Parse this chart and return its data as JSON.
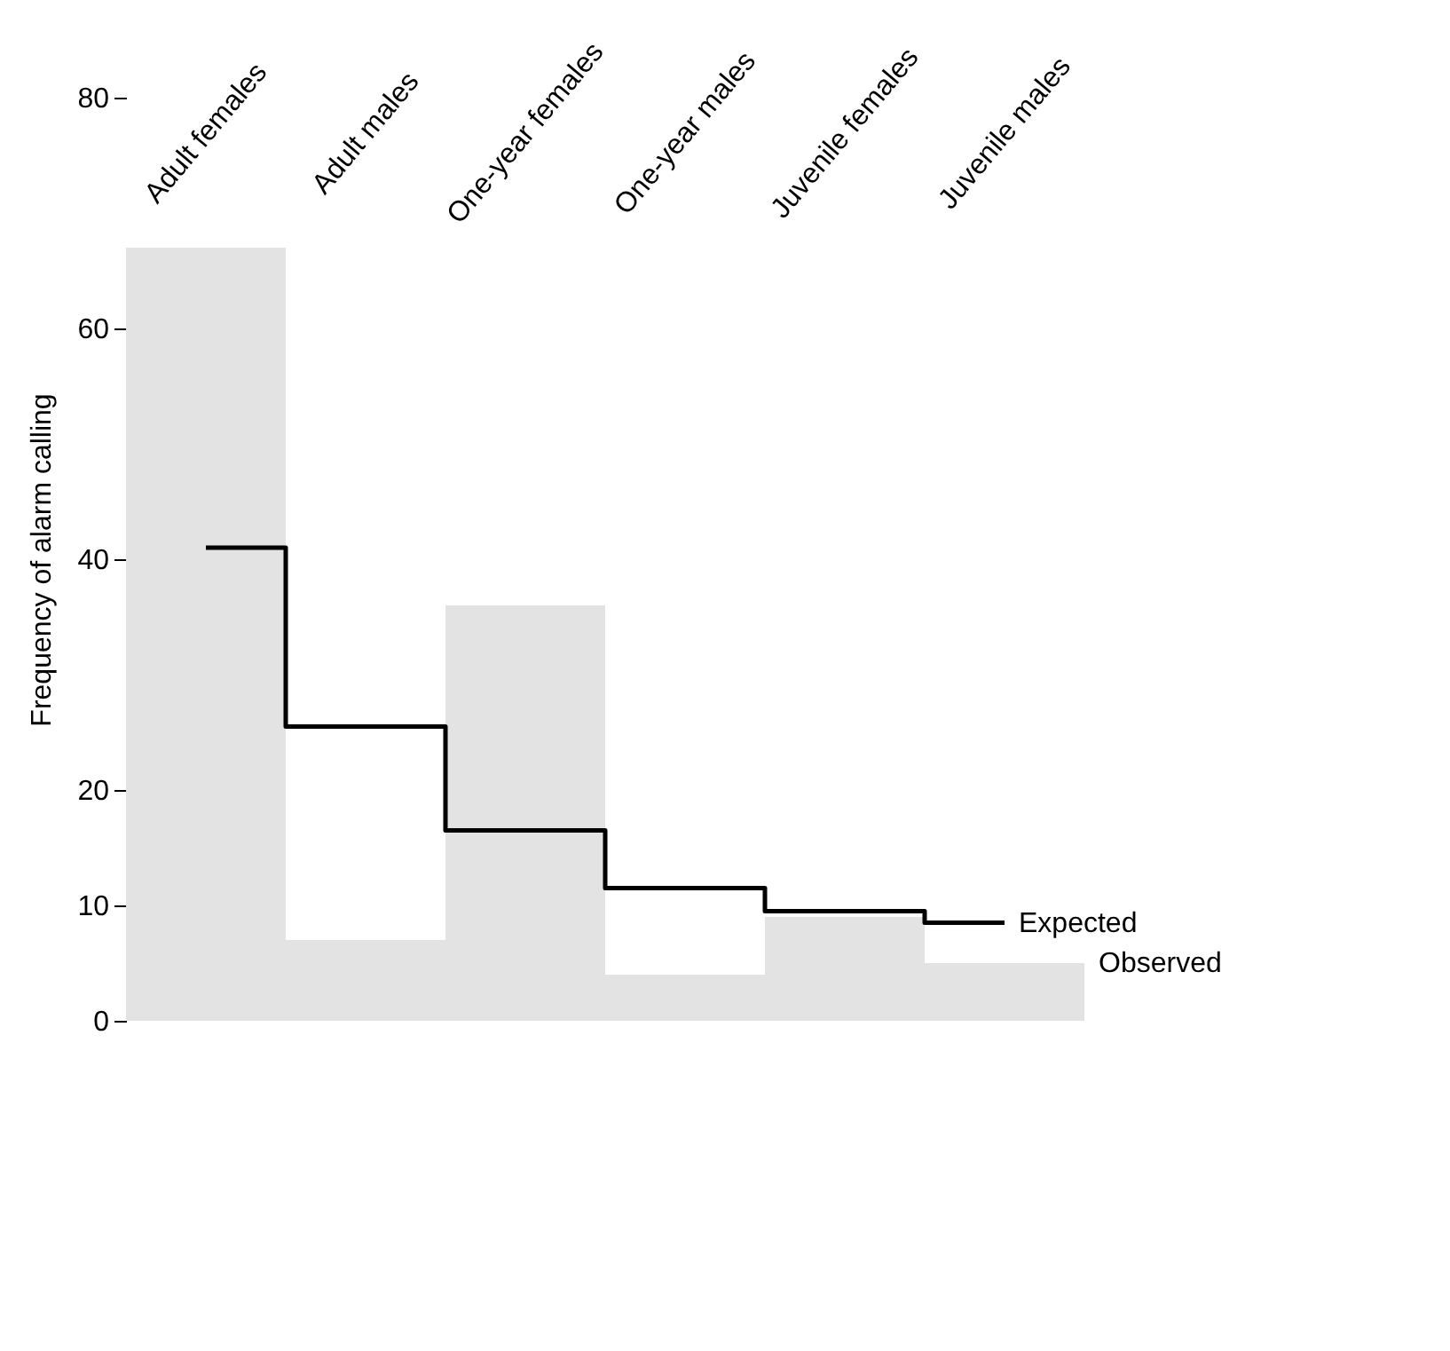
{
  "chart_data": {
    "type": "bar",
    "ylabel": "Frequency of alarm calling",
    "categories": [
      "Adult females",
      "Adult males",
      "One-year females",
      "One-year males",
      "Juvenile females",
      "Juvenile males"
    ],
    "series": [
      {
        "name": "Observed",
        "color": "#e3e3e3",
        "values": [
          67,
          7,
          36,
          4,
          9,
          5
        ]
      },
      {
        "name": "Expected",
        "type": "step",
        "color": "#000000",
        "values": [
          41,
          25.5,
          16.5,
          11.5,
          9.5,
          8.5
        ]
      }
    ],
    "ylim": [
      0,
      80
    ],
    "yticks": [
      0,
      10,
      20,
      40,
      60,
      80
    ],
    "tick_labels": "y",
    "legend": false,
    "grid": false
  }
}
